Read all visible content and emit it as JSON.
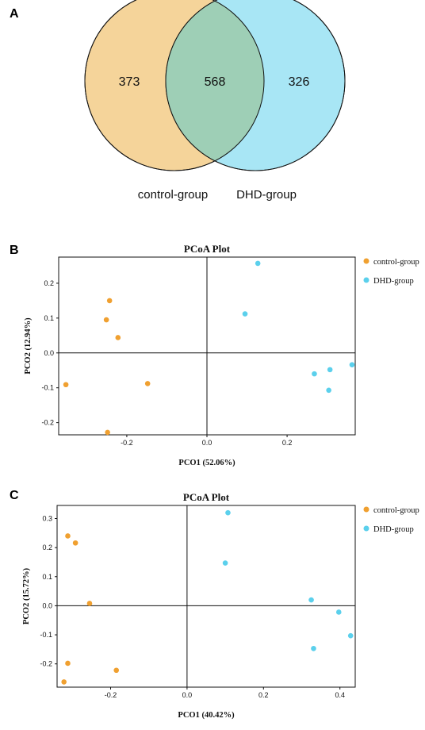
{
  "panels": {
    "a": "A",
    "b": "B",
    "c": "C"
  },
  "chart_data": [
    {
      "type": "venn",
      "sets": [
        {
          "name": "control-group",
          "only": 373,
          "color": "#f5d49a"
        },
        {
          "name": "DHD-group",
          "only": 326,
          "color": "#a8e6f5"
        }
      ],
      "intersection": 568,
      "intersection_color": "#9ecfb6"
    },
    {
      "type": "scatter",
      "title": "PCoA Plot",
      "xlabel": "PCO1 (52.06%)",
      "ylabel": "PCO2 (12.94%)",
      "xlim": [
        -0.37,
        0.37
      ],
      "ylim": [
        -0.235,
        0.275
      ],
      "xticks": [
        -0.2,
        0.0,
        0.2
      ],
      "yticks": [
        -0.2,
        -0.1,
        0.0,
        0.1,
        0.2
      ],
      "tick_labels_x": [
        "-0.2",
        "0.0",
        "0.2"
      ],
      "tick_labels_y": [
        "-0.2",
        "-0.1",
        "0.0",
        "0.1",
        "0.2"
      ],
      "legend_position": "right",
      "series": [
        {
          "name": "control-group",
          "color": "#f0a030",
          "points": [
            [
              -0.243,
              0.15
            ],
            [
              -0.251,
              0.095
            ],
            [
              -0.222,
              0.044
            ],
            [
              -0.352,
              -0.091
            ],
            [
              -0.148,
              -0.088
            ],
            [
              -0.248,
              -0.228
            ]
          ]
        },
        {
          "name": "DHD-group",
          "color": "#5bd0ec",
          "points": [
            [
              0.127,
              0.257
            ],
            [
              0.095,
              0.112
            ],
            [
              0.268,
              -0.06
            ],
            [
              0.307,
              -0.048
            ],
            [
              0.362,
              -0.034
            ],
            [
              0.304,
              -0.107
            ]
          ]
        }
      ]
    },
    {
      "type": "scatter",
      "title": "PCoA Plot",
      "xlabel": "PCO1 (40.42%)",
      "ylabel": "PCO2 (15.72%)",
      "xlim": [
        -0.34,
        0.44
      ],
      "ylim": [
        -0.28,
        0.345
      ],
      "xticks": [
        -0.2,
        0.0,
        0.2,
        0.4
      ],
      "yticks": [
        -0.2,
        -0.1,
        0.0,
        0.1,
        0.2,
        0.3
      ],
      "tick_labels_x": [
        "-0.2",
        "0.0",
        "0.2",
        "0.4"
      ],
      "tick_labels_y": [
        "-0.2",
        "-0.1",
        "0.0",
        "0.1",
        "0.2",
        "0.3"
      ],
      "legend_position": "right",
      "series": [
        {
          "name": "control-group",
          "color": "#f0a030",
          "points": [
            [
              -0.312,
              0.24
            ],
            [
              -0.292,
              0.216
            ],
            [
              -0.255,
              0.008
            ],
            [
              -0.312,
              -0.198
            ],
            [
              -0.185,
              -0.222
            ],
            [
              -0.322,
              -0.262
            ]
          ]
        },
        {
          "name": "DHD-group",
          "color": "#5bd0ec",
          "points": [
            [
              0.107,
              0.32
            ],
            [
              0.1,
              0.147
            ],
            [
              0.325,
              0.02
            ],
            [
              0.397,
              -0.022
            ],
            [
              0.428,
              -0.103
            ],
            [
              0.331,
              -0.147
            ]
          ]
        }
      ]
    }
  ]
}
